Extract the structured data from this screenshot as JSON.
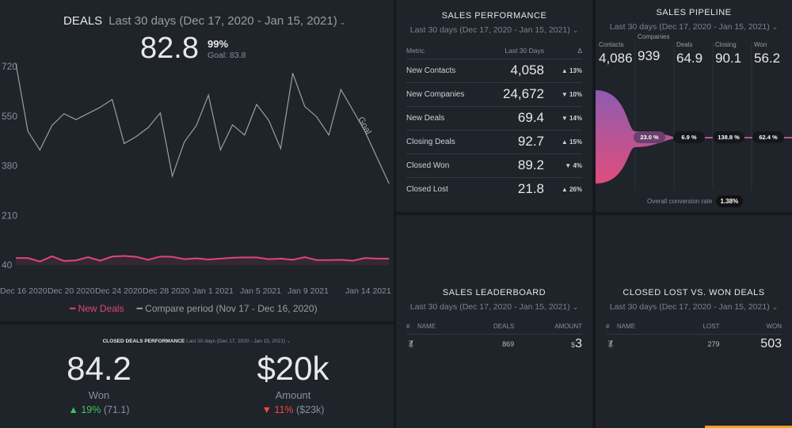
{
  "deals": {
    "title": "DEALS",
    "date_range": "Last 30 days (Dec 17, 2020 - Jan 15, 2021)",
    "value": "82.8",
    "percent": "99%",
    "goal": "Goal: 83.8",
    "goal_label": "Goal",
    "legend": {
      "series1": "New Deals",
      "series2": "Compare period (Nov 17 - Dec 16, 2020)"
    }
  },
  "chart_data": {
    "type": "line",
    "ylim": [
      40,
      720
    ],
    "yticks": [
      "720",
      "550",
      "380",
      "210",
      "40"
    ],
    "xticks": [
      "Dec 16 2020",
      "Dec 20 2020",
      "Dec 24 2020",
      "Dec 28 2020",
      "Jan 1 2021",
      "Jan 5 2021",
      "Jan 9 2021",
      "Jan 14 2021"
    ],
    "series": [
      {
        "name": "New Deals",
        "color": "#e0457b",
        "values": [
          64,
          64,
          52,
          70,
          54,
          56,
          67,
          55,
          69,
          71,
          68,
          58,
          69,
          68,
          60,
          63,
          59,
          62,
          65,
          66,
          66,
          60,
          62,
          58,
          67,
          57,
          57,
          58,
          55,
          64,
          62,
          62
        ]
      },
      {
        "name": "Compare period (Nov 17 - Dec 16, 2020)",
        "color": "#9a9ea4",
        "values": [
          730,
          498,
          434,
          518,
          558,
          538,
          559,
          580,
          607,
          456,
          480,
          511,
          561,
          344,
          462,
          518,
          622,
          434,
          520,
          485,
          590,
          536,
          439,
          697,
          583,
          547,
          485,
          641,
          570,
          498,
          408,
          319
        ]
      }
    ]
  },
  "closed": {
    "title": "CLOSED DEALS PERFORMANCE",
    "date_range": "Last 30 days (Dec 17, 2020 - Jan 15, 2021)",
    "won": {
      "value": "84.2",
      "label": "Won",
      "delta": "19%",
      "prev": "(71.1)"
    },
    "amount": {
      "value": "$20k",
      "label": "Amount",
      "delta": "11%",
      "prev": "($23k)"
    }
  },
  "sales_perf": {
    "title": "SALES PERFORMANCE",
    "date_range": "Last 30 days (Dec 17, 2020 - Jan 15, 2021)",
    "headers": [
      "Metric",
      "Last 30 Days",
      "Δ"
    ],
    "rows": [
      {
        "metric": "New Contacts",
        "value": "4,058",
        "delta": "▲ 13%",
        "dir": "up"
      },
      {
        "metric": "New Companies",
        "value": "24,672",
        "delta": "▼ 10%",
        "dir": "down"
      },
      {
        "metric": "New Deals",
        "value": "69.4",
        "delta": "▼ 14%",
        "dir": "down"
      },
      {
        "metric": "Closing Deals",
        "value": "92.7",
        "delta": "▲ 15%",
        "dir": "up"
      },
      {
        "metric": "Closed Won",
        "value": "89.2",
        "delta": "▼ 4%",
        "dir": "down"
      },
      {
        "metric": "Closed Lost",
        "value": "21.8",
        "delta": "▲ 26%",
        "dir": "down"
      }
    ]
  },
  "pipeline": {
    "title": "SALES PIPELINE",
    "date_range": "Last 30 days (Dec 17, 2020 - Jan 15, 2021)",
    "stages": [
      {
        "label": "Contacts",
        "value": "4,086"
      },
      {
        "label": "Companies",
        "value": "939"
      },
      {
        "label": "Deals",
        "value": "64.9"
      },
      {
        "label": "Closing",
        "value": "90.1"
      },
      {
        "label": "Won",
        "value": "56.2"
      }
    ],
    "rates": [
      "23.0 %",
      "6.9 %",
      "138.8 %",
      "62.4 %"
    ],
    "overall_label": "Overall conversion rate",
    "overall": "1.38%"
  },
  "leaderboard": {
    "title": "SALES LEADERBOARD",
    "date_range": "Last 30 days (Dec 17, 2020 - Jan 15, 2021)",
    "headers": [
      "#",
      "NAME",
      "DEALS",
      "AMOUNT"
    ],
    "row": {
      "deals": "869",
      "amount_prefix": "$",
      "amount": "3"
    }
  },
  "lostwon": {
    "title": "CLOSED LOST VS. WON DEALS",
    "date_range": "Last 30 days (Dec 17, 2020 - Jan 15, 2021)",
    "headers": [
      "#",
      "NAME",
      "LOST",
      "WON"
    ],
    "row": {
      "lost": "279",
      "won": "503"
    }
  }
}
